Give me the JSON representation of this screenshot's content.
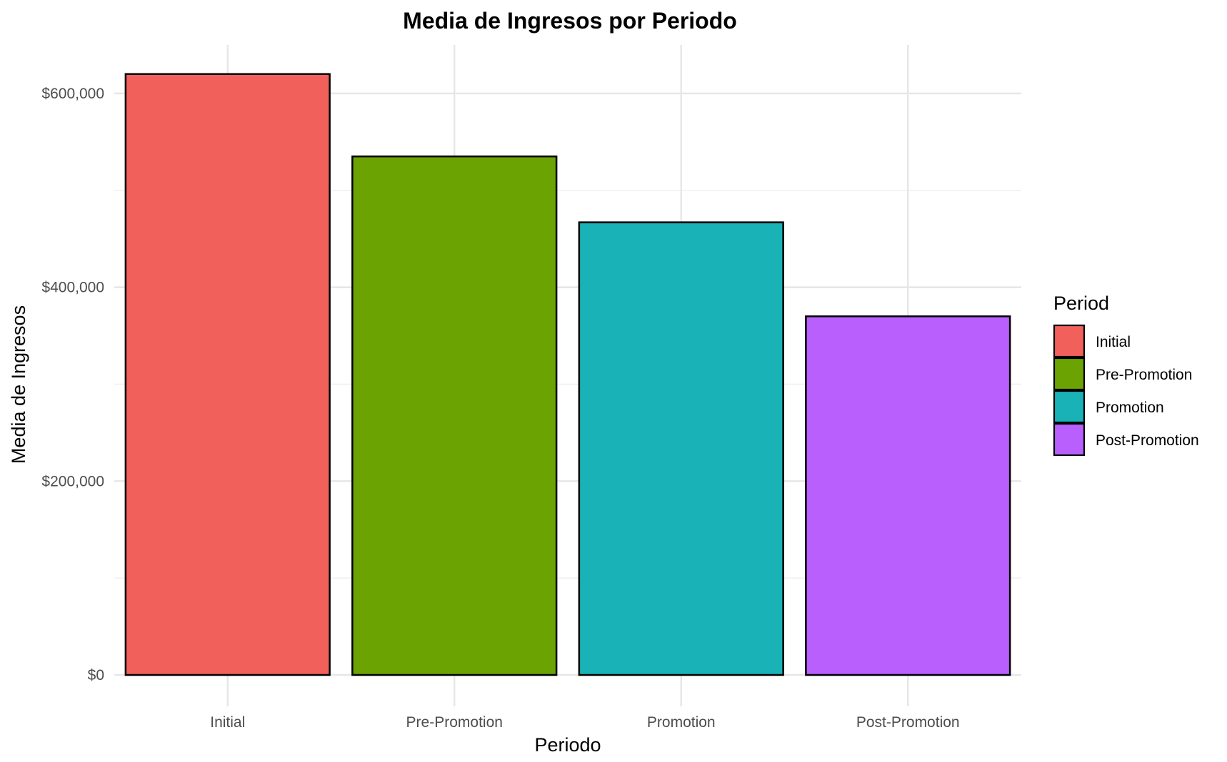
{
  "chart_data": {
    "type": "bar",
    "title": "Media de Ingresos por Periodo",
    "xlabel": "Periodo",
    "ylabel": "Media de Ingresos",
    "categories": [
      "Initial",
      "Pre-Promotion",
      "Promotion",
      "Post-Promotion"
    ],
    "values": [
      620000,
      535000,
      467000,
      370000
    ],
    "colors": [
      "#F2605C",
      "#6BA303",
      "#19B2B6",
      "#B95FFE"
    ],
    "ylim": [
      0,
      650000
    ],
    "y_ticks": [
      0,
      200000,
      400000,
      600000
    ],
    "y_tick_labels": [
      "$0",
      "$200,000",
      "$400,000",
      "$600,000"
    ],
    "grid": true,
    "legend": {
      "title": "Period",
      "position": "right",
      "entries": [
        "Initial",
        "Pre-Promotion",
        "Promotion",
        "Post-Promotion"
      ]
    }
  }
}
